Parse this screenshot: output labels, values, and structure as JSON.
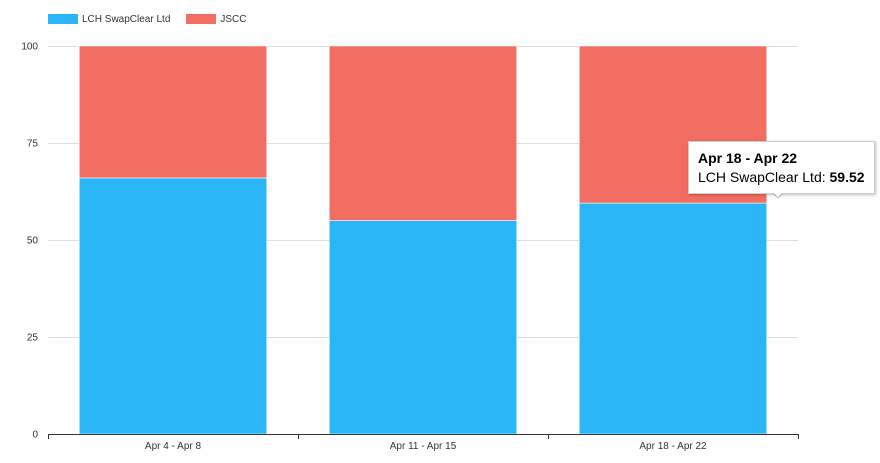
{
  "colors": {
    "series1": "#29b5f6",
    "series2": "#f26d61",
    "grid": "#dddddd",
    "axis": "#333333"
  },
  "legend": [
    {
      "label": "LCH SwapClear Ltd"
    },
    {
      "label": "JSCC"
    }
  ],
  "tooltip": {
    "title": "Apr 18 - Apr 22",
    "series_label": "LCH SwapClear Ltd",
    "value": "59.52"
  },
  "chart_data": {
    "type": "bar",
    "stacked": true,
    "categories": [
      "Apr 4 - Apr 8",
      "Apr 11 - Apr 15",
      "Apr 18 - Apr 22"
    ],
    "series": [
      {
        "name": "LCH SwapClear Ltd",
        "values": [
          66.0,
          55.0,
          59.52
        ]
      },
      {
        "name": "JSCC",
        "values": [
          34.0,
          45.0,
          40.48
        ]
      }
    ],
    "ylim": [
      0,
      100
    ],
    "yticks": [
      0,
      25,
      50,
      75,
      100
    ],
    "grid": true,
    "legend_position": "top-left"
  }
}
